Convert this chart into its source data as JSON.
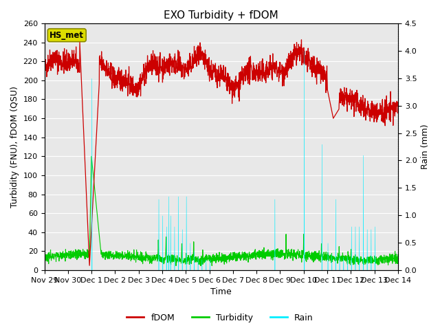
{
  "title": "EXO Turbidity + fDOM",
  "ylabel_left": "Turbidity (FNU), fDOM (QSU)",
  "ylabel_right": "Rain (mm)",
  "xlabel": "Time",
  "ylim_left": [
    0,
    260
  ],
  "ylim_right": [
    0,
    4.5
  ],
  "yticks_left": [
    0,
    20,
    40,
    60,
    80,
    100,
    120,
    140,
    160,
    180,
    200,
    220,
    240,
    260
  ],
  "yticks_right": [
    0.0,
    0.5,
    1.0,
    1.5,
    2.0,
    2.5,
    3.0,
    3.5,
    4.0,
    4.5
  ],
  "fdom_color": "#cc0000",
  "turbidity_color": "#00cc00",
  "rain_color": "#00eeff",
  "background_color": "#ffffff",
  "plot_bg_color": "#e8e8e8",
  "grid_color": "#ffffff",
  "legend_fdom": "fDOM",
  "legend_turbidity": "Turbidity",
  "legend_rain": "Rain",
  "station_label": "HS_met",
  "station_label_bg": "#dddd00",
  "title_fontsize": 11,
  "axis_fontsize": 9,
  "tick_fontsize": 8,
  "legend_fontsize": 9,
  "n_points": 2000
}
